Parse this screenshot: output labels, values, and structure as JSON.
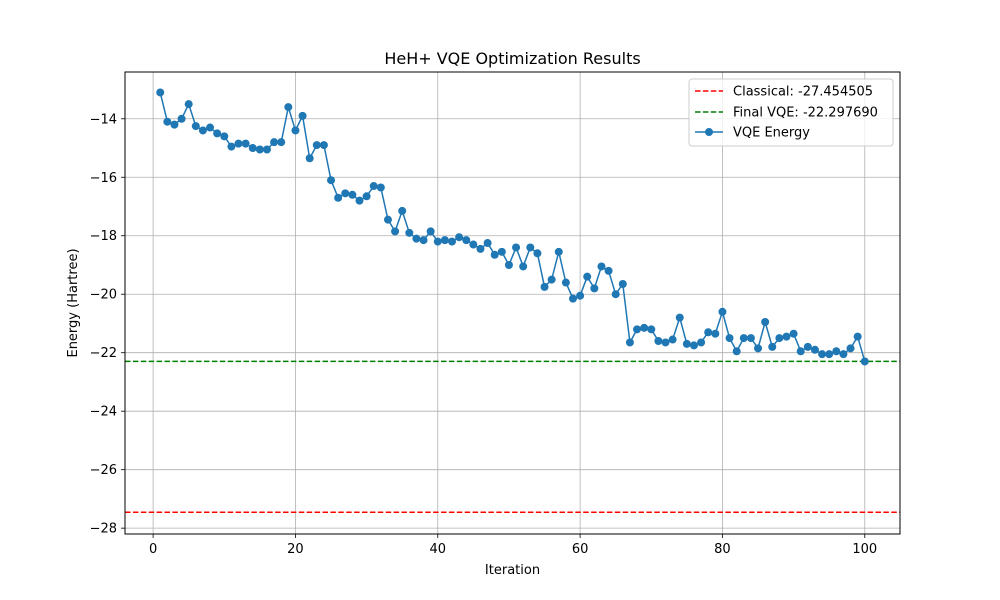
{
  "chart_data": {
    "type": "line",
    "title": "HeH+ VQE Optimization Results",
    "xlabel": "Iteration",
    "ylabel": "Energy (Hartree)",
    "xlim": [
      -3.95,
      104.95
    ],
    "ylim": [
      -28.2,
      -12.4
    ],
    "xticks": [
      0,
      20,
      40,
      60,
      80,
      100
    ],
    "xtick_labels": [
      "0",
      "20",
      "40",
      "60",
      "80",
      "100"
    ],
    "yticks": [
      -28,
      -26,
      -24,
      -22,
      -20,
      -18,
      -16,
      -14
    ],
    "ytick_labels": [
      "−28",
      "−26",
      "−24",
      "−22",
      "−20",
      "−18",
      "−16",
      "−14"
    ],
    "grid": true,
    "legend_position": "top-right",
    "reference_lines": [
      {
        "name": "Classical: -27.454505",
        "y": -27.454505,
        "color": "#ff0000",
        "style": "dashed"
      },
      {
        "name": "Final VQE: -22.297690",
        "y": -22.29769,
        "color": "#008000",
        "style": "dashed"
      }
    ],
    "series": [
      {
        "name": "VQE Energy",
        "color": "#1f77b4",
        "marker": "circle",
        "x": [
          1,
          2,
          3,
          4,
          5,
          6,
          7,
          8,
          9,
          10,
          11,
          12,
          13,
          14,
          15,
          16,
          17,
          18,
          19,
          20,
          21,
          22,
          23,
          24,
          25,
          26,
          27,
          28,
          29,
          30,
          31,
          32,
          33,
          34,
          35,
          36,
          37,
          38,
          39,
          40,
          41,
          42,
          43,
          44,
          45,
          46,
          47,
          48,
          49,
          50,
          51,
          52,
          53,
          54,
          55,
          56,
          57,
          58,
          59,
          60,
          61,
          62,
          63,
          64,
          65,
          66,
          67,
          68,
          69,
          70,
          71,
          72,
          73,
          74,
          75,
          76,
          77,
          78,
          79,
          80,
          81,
          82,
          83,
          84,
          85,
          86,
          87,
          88,
          89,
          90,
          91,
          92,
          93,
          94,
          95,
          96,
          97,
          98,
          99,
          100
        ],
        "values": [
          -13.1,
          -14.1,
          -14.2,
          -14.0,
          -13.5,
          -14.25,
          -14.4,
          -14.3,
          -14.5,
          -14.6,
          -14.95,
          -14.85,
          -14.85,
          -15.0,
          -15.05,
          -15.05,
          -14.8,
          -14.8,
          -13.6,
          -14.4,
          -13.9,
          -15.35,
          -14.9,
          -14.9,
          -16.1,
          -16.7,
          -16.55,
          -16.6,
          -16.8,
          -16.65,
          -16.3,
          -16.35,
          -17.45,
          -17.85,
          -17.15,
          -17.9,
          -18.1,
          -18.15,
          -17.85,
          -18.2,
          -18.15,
          -18.2,
          -18.05,
          -18.15,
          -18.3,
          -18.45,
          -18.25,
          -18.65,
          -18.55,
          -19.0,
          -18.4,
          -19.05,
          -18.4,
          -18.6,
          -19.75,
          -19.5,
          -18.55,
          -19.6,
          -20.15,
          -20.05,
          -19.4,
          -19.8,
          -19.05,
          -19.2,
          -20.0,
          -19.65,
          -21.65,
          -21.2,
          -21.15,
          -21.2,
          -21.6,
          -21.65,
          -21.55,
          -20.8,
          -21.7,
          -21.75,
          -21.65,
          -21.3,
          -21.35,
          -20.6,
          -21.5,
          -21.95,
          -21.5,
          -21.5,
          -21.85,
          -20.95,
          -21.8,
          -21.5,
          -21.45,
          -21.35,
          -21.95,
          -21.8,
          -21.9,
          -22.05,
          -22.05,
          -21.95,
          -22.05,
          -21.85,
          -21.45,
          -22.3
        ]
      }
    ]
  }
}
